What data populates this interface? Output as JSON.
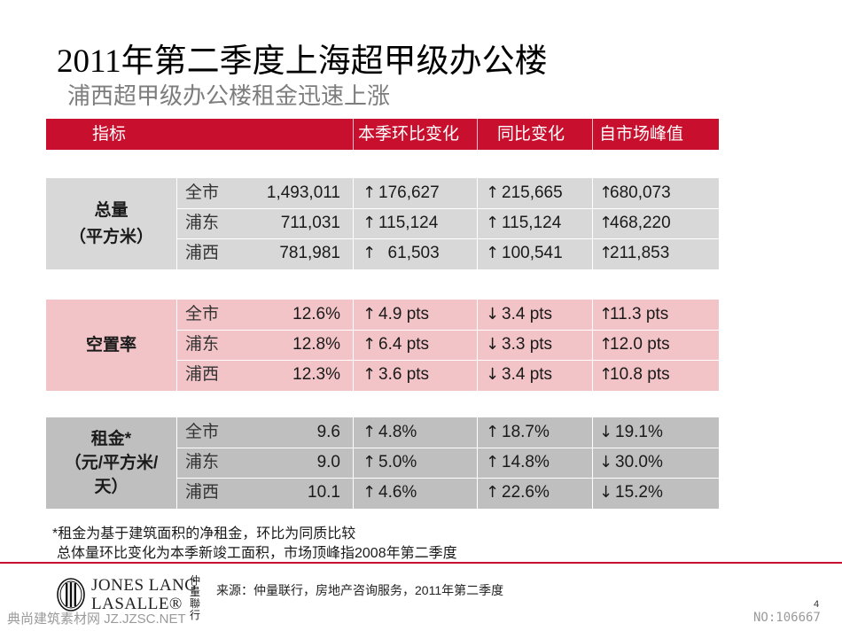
{
  "title": "2011年第二季度上海超甲级办公楼",
  "subtitle": "浦西超甲级办公楼租金迅速上涨",
  "header": {
    "metric": "指标",
    "qoq": "本季环比变化",
    "yoy": "同比变化",
    "peak": "自市场峰值"
  },
  "sections": [
    {
      "metric": [
        "总量",
        "（平方米）"
      ],
      "color": "#d8d8d8",
      "rows": [
        {
          "region": "全市",
          "value": "1,493,011",
          "qoq_arrow": "↑",
          "qoq": "176,627",
          "yoy_arrow": "↑",
          "yoy": "215,665",
          "peak_arrow": "↑",
          "peak": "680,073"
        },
        {
          "region": "浦东",
          "value": "711,031",
          "qoq_arrow": "↑",
          "qoq": "115,124",
          "yoy_arrow": "↑",
          "yoy": "115,124",
          "peak_arrow": "↑",
          "peak": "468,220"
        },
        {
          "region": "浦西",
          "value": "781,981",
          "qoq_arrow": "↑",
          "qoq": "  61,503",
          "yoy_arrow": "↑",
          "yoy": "100,541",
          "peak_arrow": "↑",
          "peak": "211,853"
        }
      ]
    },
    {
      "metric": [
        "空置率"
      ],
      "color": "#f2c4c7",
      "rows": [
        {
          "region": "全市",
          "value": "12.6%",
          "qoq_arrow": "↑",
          "qoq": "4.9 pts",
          "yoy_arrow": "↓",
          "yoy": "3.4 pts",
          "peak_arrow": "↑",
          "peak": "11.3 pts"
        },
        {
          "region": "浦东",
          "value": "12.8%",
          "qoq_arrow": "↑",
          "qoq": "6.4 pts",
          "yoy_arrow": "↓",
          "yoy": "3.3 pts",
          "peak_arrow": "↑",
          "peak": "12.0 pts"
        },
        {
          "region": "浦西",
          "value": "12.3%",
          "qoq_arrow": "↑",
          "qoq": "3.6 pts",
          "yoy_arrow": "↓",
          "yoy": "3.4 pts",
          "peak_arrow": "↑",
          "peak": "10.8 pts"
        }
      ]
    },
    {
      "metric": [
        "租金*",
        "（元/平方米/",
        "天）"
      ],
      "color": "#bfbfbf",
      "rows": [
        {
          "region": "全市",
          "value": "9.6",
          "qoq_arrow": "↑",
          "qoq": "4.8%",
          "yoy_arrow": "↑",
          "yoy": "18.7%",
          "peak_arrow": "↓",
          "peak": "19.1%"
        },
        {
          "region": "浦东",
          "value": "9.0",
          "qoq_arrow": "↑",
          "qoq": "5.0%",
          "yoy_arrow": "↑",
          "yoy": "14.8%",
          "peak_arrow": "↓",
          "peak": "30.0%"
        },
        {
          "region": "浦西",
          "value": "10.1",
          "qoq_arrow": "↑",
          "qoq": "4.6%",
          "yoy_arrow": "↑",
          "yoy": "22.6%",
          "peak_arrow": "↓",
          "peak": "15.2%"
        }
      ]
    }
  ],
  "notes": [
    "*租金为基于建筑面积的净租金，环比为同质比较",
    "总体量环比变化为本季新竣工面积，市场顶峰指2008年第二季度"
  ],
  "footer": {
    "logo_line1": "JONES LANG",
    "logo_line2": "LASALLE®",
    "logo_cn": "仲量聯行",
    "source": "来源：仲量联行，房地产咨询服务，2011年第二季度",
    "page_number": "4",
    "watermark_left": "典尚建筑素材网 JZ.JZSC.NET",
    "watermark_right": "NO:106667"
  },
  "colors": {
    "accent_red": "#c8102e",
    "subtitle_gray": "#7d7d7d"
  }
}
